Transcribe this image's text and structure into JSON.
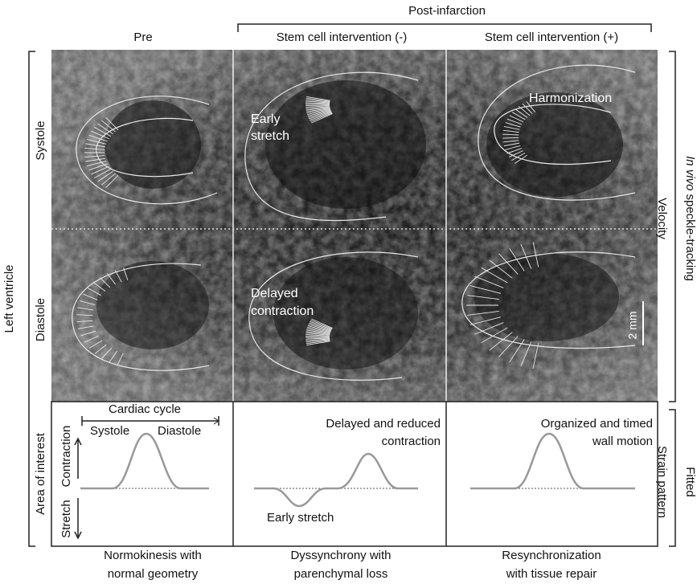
{
  "header": {
    "group_title": "Post-infarction",
    "columns": [
      "Pre",
      "Stem cell intervention (-)",
      "Stem cell intervention (+)"
    ]
  },
  "left": {
    "title": "Left ventricle",
    "rows": [
      "Systole",
      "Diastole",
      "Area of interest"
    ]
  },
  "right": {
    "title_italic": "In vivo",
    "title_rest": "speckle-tracking",
    "upper": "Velocity",
    "lower_title": "Fitted",
    "lower": "Strain pattern"
  },
  "images": {
    "early_stretch": [
      "Early",
      "stretch"
    ],
    "harmonization": "Harmonization",
    "delayed_contraction": [
      "Delayed",
      "contraction"
    ],
    "scale": "2 mm"
  },
  "strain": {
    "cardiac_cycle": "Cardiac cycle",
    "systole": "Systole",
    "diastole": "Diastole",
    "contraction": "Contraction",
    "stretch": "Stretch",
    "delayed_reduced": [
      "Delayed and reduced",
      "contraction"
    ],
    "early_stretch": "Early stretch",
    "organized": [
      "Organized and timed",
      "wall motion"
    ]
  },
  "captions": [
    [
      "Normokinesis with",
      "normal geometry"
    ],
    [
      "Dyssynchrony with",
      "parenchymal loss"
    ],
    [
      "Resynchronization",
      "with tissue repair"
    ]
  ]
}
